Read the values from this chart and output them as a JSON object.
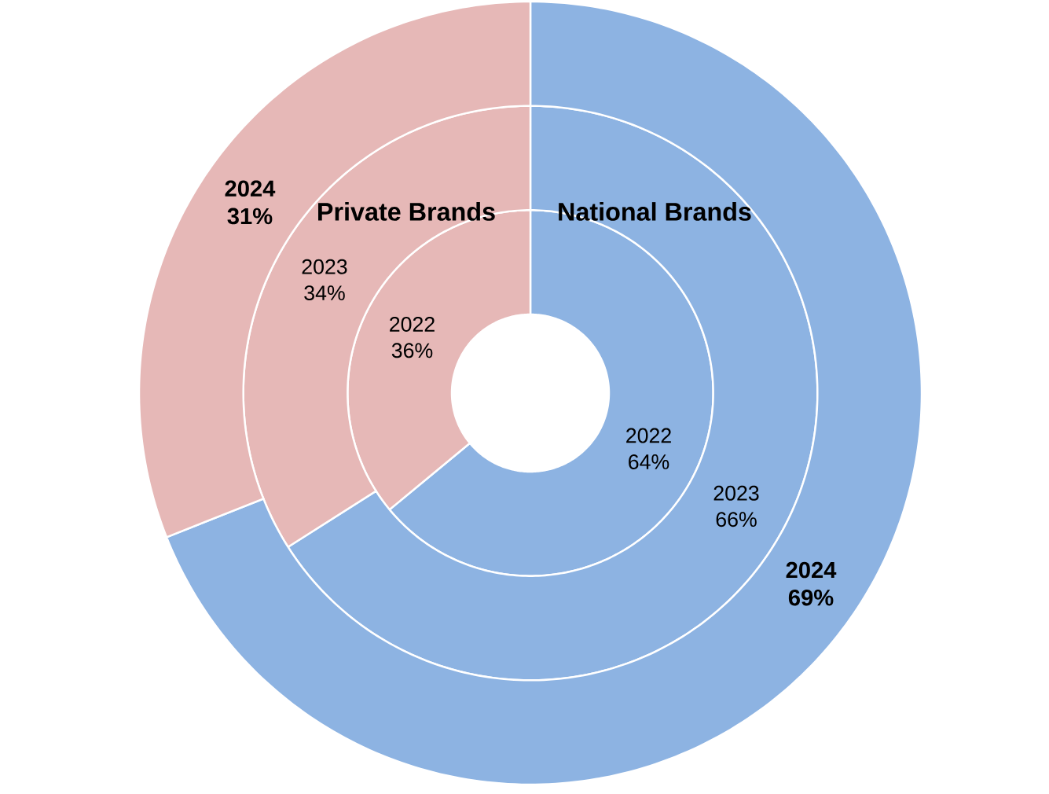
{
  "chart_data": {
    "type": "donut",
    "categories": [
      "National Brands",
      "Private Brands"
    ],
    "colors": [
      "#8db3e2",
      "#e6b8b7"
    ],
    "series": [
      {
        "name": "2022",
        "values": [
          64,
          36
        ],
        "value_labels": [
          "64%",
          "36%"
        ]
      },
      {
        "name": "2023",
        "values": [
          66,
          34
        ],
        "value_labels": [
          "66%",
          "34%"
        ]
      },
      {
        "name": "2024",
        "values": [
          69,
          31
        ],
        "value_labels": [
          "69%",
          "31%"
        ]
      }
    ]
  }
}
